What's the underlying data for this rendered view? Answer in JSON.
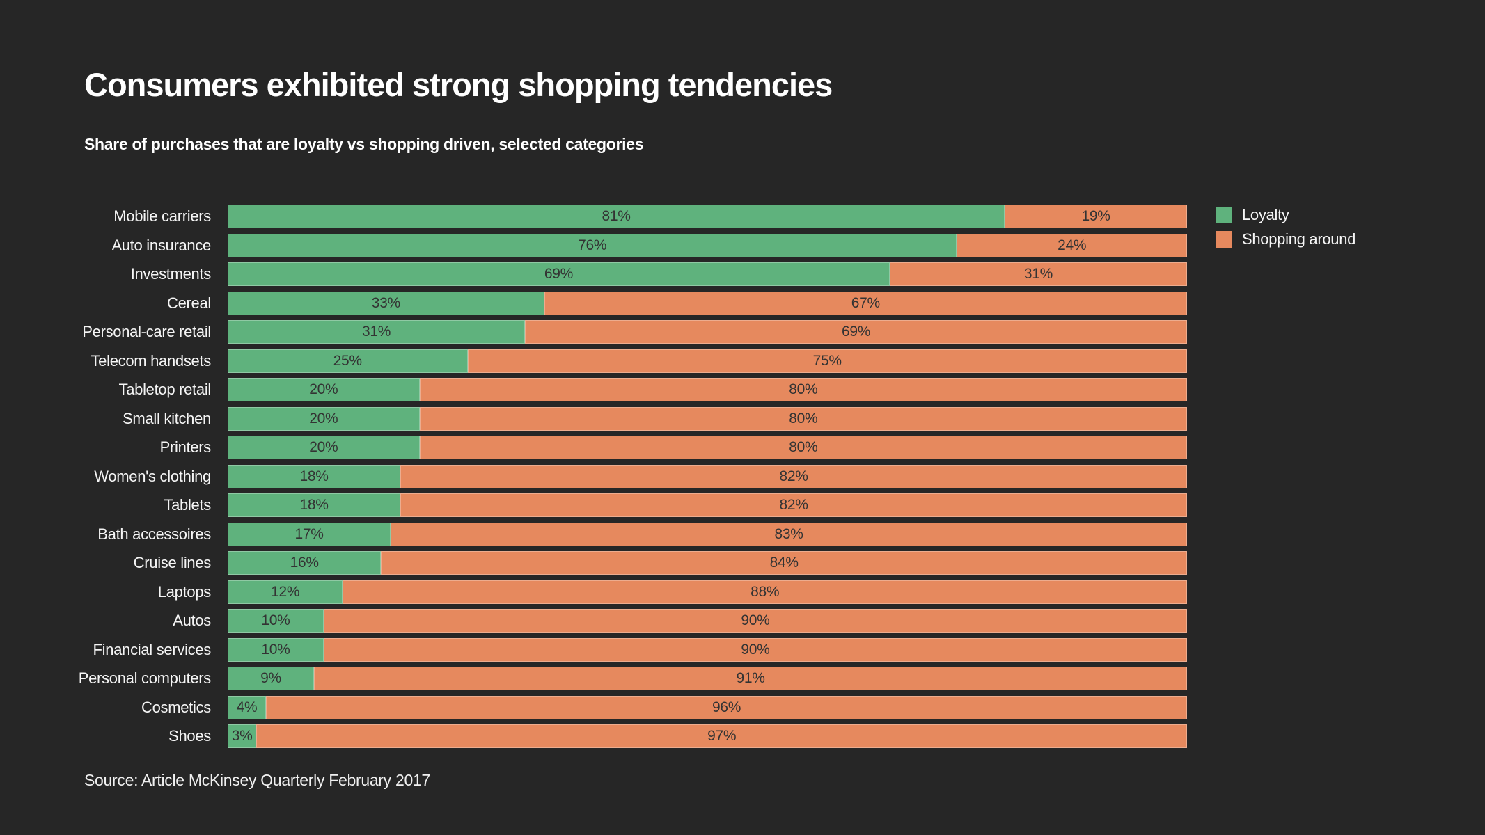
{
  "page": {
    "title": "Consumers exhibited strong shopping tendencies",
    "subtitle": "Share of purchases that are loyalty vs shopping driven, selected categories",
    "source": "Source: Article McKinsey Quarterly February 2017"
  },
  "colors": {
    "background": "#262626",
    "loyalty": "#5fb27d",
    "shopping_around": "#e6895e",
    "bar_value_text": "#333333",
    "text": "#f5f5f5"
  },
  "legend": {
    "position": "right",
    "items": [
      {
        "label": "Loyalty",
        "color": "#5fb27d"
      },
      {
        "label": "Shopping around",
        "color": "#e6895e"
      }
    ]
  },
  "chart_data": {
    "type": "bar",
    "orientation": "horizontal",
    "stacked": true,
    "unit": "%",
    "xlim": [
      0,
      100
    ],
    "grid": false,
    "legend_position": "right",
    "title": "Consumers exhibited strong shopping tendencies",
    "subtitle": "Share of purchases that are loyalty vs shopping driven, selected categories",
    "categories": [
      "Mobile carriers",
      "Auto insurance",
      "Investments",
      "Cereal",
      "Personal-care retail",
      "Telecom handsets",
      "Tabletop retail",
      "Small kitchen",
      "Printers",
      "Women's clothing",
      "Tablets",
      "Bath accessoires",
      "Cruise lines",
      "Laptops",
      "Autos",
      "Financial services",
      "Personal computers",
      "Cosmetics",
      "Shoes"
    ],
    "series": [
      {
        "name": "Loyalty",
        "color": "#5fb27d",
        "values": [
          81,
          76,
          69,
          33,
          31,
          25,
          20,
          20,
          20,
          18,
          18,
          17,
          16,
          12,
          10,
          10,
          9,
          4,
          3
        ]
      },
      {
        "name": "Shopping around",
        "color": "#e6895e",
        "values": [
          19,
          24,
          31,
          67,
          69,
          75,
          80,
          80,
          80,
          82,
          82,
          83,
          84,
          88,
          90,
          90,
          91,
          96,
          97
        ]
      }
    ]
  }
}
